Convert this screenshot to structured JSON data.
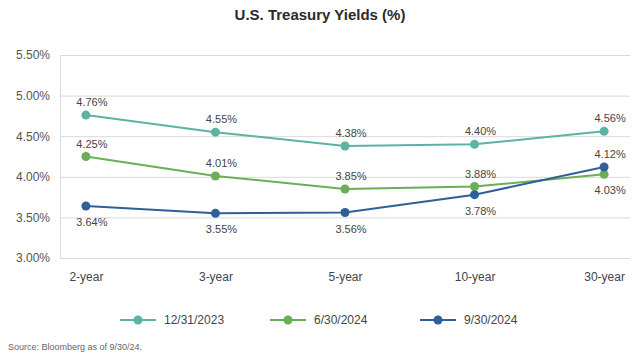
{
  "chart_data": {
    "type": "line",
    "title": "U.S. Treasury Yields (%)",
    "source": "Source: Bloomberg as of 9/30/24.",
    "categories": [
      "2-year",
      "3-year",
      "5-year",
      "10-year",
      "30-year"
    ],
    "series": [
      {
        "name": "12/31/2023",
        "color": "#5cb3a4",
        "values": [
          4.76,
          4.55,
          4.38,
          4.4,
          4.56
        ],
        "value_labels": [
          "4.76%",
          "4.55%",
          "4.38%",
          "4.40%",
          "4.56%"
        ]
      },
      {
        "name": "6/30/2024",
        "color": "#6aae55",
        "values": [
          4.25,
          4.01,
          3.85,
          3.88,
          4.03
        ],
        "value_labels": [
          "4.25%",
          "4.01%",
          "3.85%",
          "3.88%",
          "4.03%"
        ]
      },
      {
        "name": "9/30/2024",
        "color": "#2f5f98",
        "values": [
          3.64,
          3.55,
          3.56,
          3.78,
          4.12
        ],
        "value_labels": [
          "3.64%",
          "3.55%",
          "3.56%",
          "3.78%",
          "4.12%"
        ]
      }
    ],
    "ylim": [
      3.0,
      5.5
    ],
    "yticks": [
      {
        "value": 3.0,
        "label": "3.00%"
      },
      {
        "value": 3.5,
        "label": "3.50%"
      },
      {
        "value": 4.0,
        "label": "4.00%"
      },
      {
        "value": 4.5,
        "label": "4.50%"
      },
      {
        "value": 5.0,
        "label": "5.00%"
      },
      {
        "value": 5.5,
        "label": "5.50%"
      }
    ],
    "grid": true,
    "legend": "bottom",
    "data_labels": true,
    "marker": "circle"
  }
}
